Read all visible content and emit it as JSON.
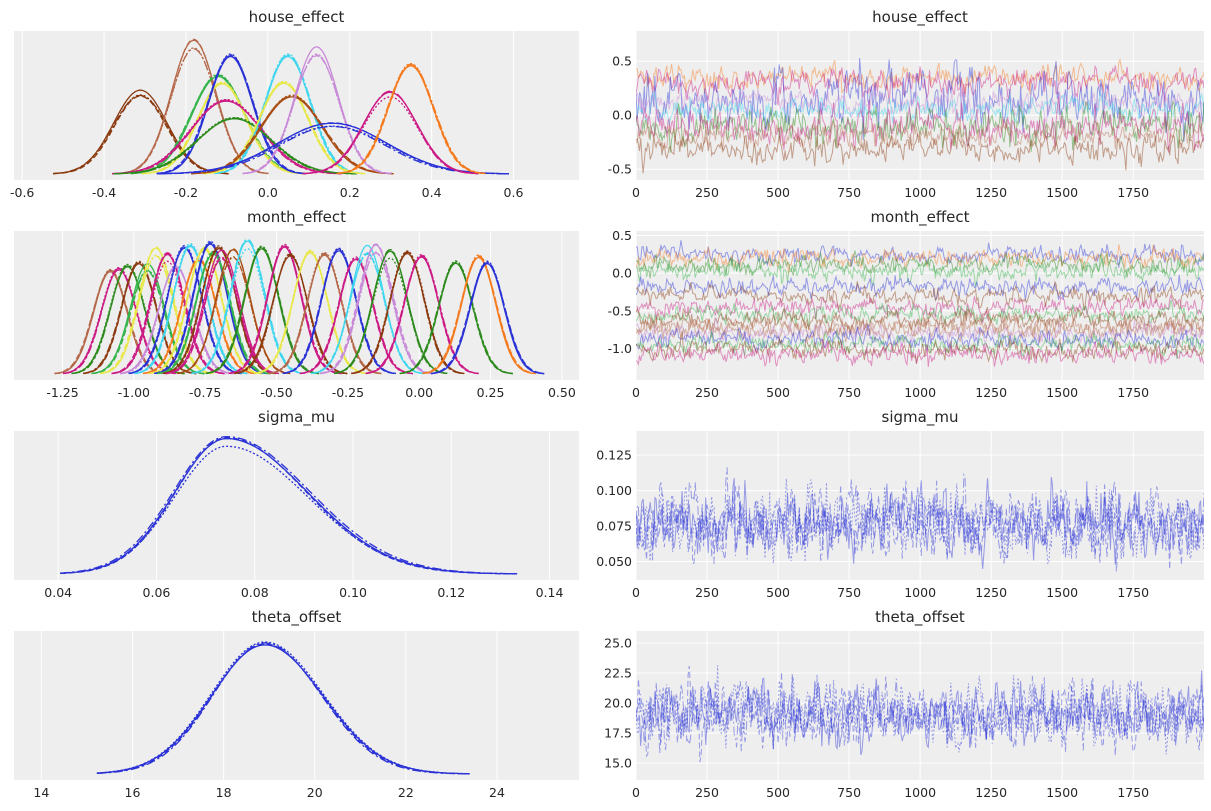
{
  "chart_data": [
    {
      "type": "line",
      "title": "house_effect",
      "plot": "density",
      "xlim": [
        -0.62,
        0.76
      ],
      "x_ticks": [
        "-0.6",
        "-0.4",
        "-0.2",
        "0.0",
        "0.2",
        "0.4",
        "0.6"
      ],
      "x_tick_values": [
        -0.6,
        -0.4,
        -0.2,
        0.0,
        0.2,
        0.4,
        0.6
      ],
      "y_ticks": [],
      "grid": true,
      "series": [
        {
          "mean": -0.31,
          "sd": 0.065,
          "peak": 0.61,
          "color": "#8b3a0f"
        },
        {
          "mean": -0.18,
          "sd": 0.055,
          "peak": 0.98,
          "color": "#b5694a"
        },
        {
          "mean": -0.12,
          "sd": 0.065,
          "peak": 0.72,
          "color": "#34b44a"
        },
        {
          "mean": -0.11,
          "sd": 0.06,
          "peak": 0.67,
          "color": "#e8e84a"
        },
        {
          "mean": -0.09,
          "sd": 0.055,
          "peak": 0.88,
          "color": "#2a32d6"
        },
        {
          "mean": -0.1,
          "sd": 0.085,
          "peak": 0.55,
          "color": "#cc1a85"
        },
        {
          "mean": -0.08,
          "sd": 0.09,
          "peak": 0.42,
          "color": "#2c8a1c"
        },
        {
          "mean": 0.05,
          "sd": 0.055,
          "peak": 0.9,
          "color": "#3fd6ef"
        },
        {
          "mean": 0.04,
          "sd": 0.06,
          "peak": 0.7,
          "color": "#e8e84a"
        },
        {
          "mean": 0.06,
          "sd": 0.075,
          "peak": 0.6,
          "color": "#a84d13"
        },
        {
          "mean": 0.12,
          "sd": 0.055,
          "peak": 0.92,
          "color": "#c88ad8"
        },
        {
          "mean": 0.16,
          "sd": 0.13,
          "peak": 0.37,
          "color": "#2a32d6"
        },
        {
          "mean": 0.3,
          "sd": 0.065,
          "peak": 0.6,
          "color": "#cc1a85"
        },
        {
          "mean": 0.35,
          "sd": 0.055,
          "peak": 0.8,
          "color": "#f57a1e"
        }
      ]
    },
    {
      "type": "line",
      "title": "house_effect",
      "plot": "trace",
      "xlim": [
        0,
        1999
      ],
      "ylim": [
        -0.6,
        0.78
      ],
      "x_ticks": [
        "0",
        "250",
        "500",
        "750",
        "1000",
        "1250",
        "1500",
        "1750"
      ],
      "x_tick_values": [
        0,
        250,
        500,
        750,
        1000,
        1250,
        1500,
        1750
      ],
      "y_ticks": [
        "-0.5",
        "0.0",
        "0.5"
      ],
      "y_tick_values": [
        -0.5,
        0.0,
        0.5
      ],
      "grid": true,
      "series": [
        {
          "mean": 0.35,
          "sd": 0.055,
          "color": "#f57a1e"
        },
        {
          "mean": 0.3,
          "sd": 0.065,
          "color": "#cc1a85"
        },
        {
          "mean": 0.16,
          "sd": 0.13,
          "color": "#2a32d6"
        },
        {
          "mean": 0.12,
          "sd": 0.055,
          "color": "#c88ad8"
        },
        {
          "mean": 0.05,
          "sd": 0.055,
          "color": "#3fd6ef"
        },
        {
          "mean": -0.08,
          "sd": 0.09,
          "color": "#2c8a1c"
        },
        {
          "mean": -0.1,
          "sd": 0.085,
          "color": "#cc1a85"
        },
        {
          "mean": -0.18,
          "sd": 0.055,
          "color": "#b5694a"
        },
        {
          "mean": -0.31,
          "sd": 0.065,
          "color": "#8b3a0f"
        }
      ]
    },
    {
      "type": "line",
      "title": "month_effect",
      "plot": "density",
      "xlim": [
        -1.42,
        0.56
      ],
      "x_ticks": [
        "-1.25",
        "-1.00",
        "-0.75",
        "-0.50",
        "-0.25",
        "0.00",
        "0.25",
        "0.50"
      ],
      "x_tick_values": [
        -1.25,
        -1.0,
        -0.75,
        -0.5,
        -0.25,
        0.0,
        0.25,
        0.5
      ],
      "y_ticks": [],
      "grid": true,
      "series": [
        {
          "mean": -1.08,
          "sd": 0.06,
          "peak": 0.78,
          "color": "#b5694a"
        },
        {
          "mean": -1.05,
          "sd": 0.06,
          "peak": 0.8,
          "color": "#cc1a85"
        },
        {
          "mean": -1.02,
          "sd": 0.06,
          "peak": 0.83,
          "color": "#2c8a1c"
        },
        {
          "mean": -0.98,
          "sd": 0.06,
          "peak": 0.86,
          "color": "#8b3a0f"
        },
        {
          "mean": -0.95,
          "sd": 0.06,
          "peak": 0.8,
          "color": "#34b44a"
        },
        {
          "mean": -0.92,
          "sd": 0.06,
          "peak": 0.92,
          "color": "#e8e84a"
        },
        {
          "mean": -0.88,
          "sd": 0.06,
          "peak": 0.88,
          "color": "#cc1a85"
        },
        {
          "mean": -0.85,
          "sd": 0.06,
          "peak": 0.79,
          "color": "#c88ad8"
        },
        {
          "mean": -0.82,
          "sd": 0.06,
          "peak": 0.94,
          "color": "#2a32d6"
        },
        {
          "mean": -0.8,
          "sd": 0.06,
          "peak": 0.96,
          "color": "#3fd6ef"
        },
        {
          "mean": -0.77,
          "sd": 0.06,
          "peak": 0.86,
          "color": "#f57a1e"
        },
        {
          "mean": -0.75,
          "sd": 0.06,
          "peak": 0.95,
          "color": "#e8e84a"
        },
        {
          "mean": -0.73,
          "sd": 0.06,
          "peak": 1.0,
          "color": "#2a32d6"
        },
        {
          "mean": -0.72,
          "sd": 0.06,
          "peak": 0.93,
          "color": "#34b44a"
        },
        {
          "mean": -0.7,
          "sd": 0.06,
          "peak": 0.98,
          "color": "#8b3a0f"
        },
        {
          "mean": -0.69,
          "sd": 0.06,
          "peak": 0.9,
          "color": "#cc1a85"
        },
        {
          "mean": -0.65,
          "sd": 0.06,
          "peak": 0.91,
          "color": "#a84d13"
        },
        {
          "mean": -0.6,
          "sd": 0.06,
          "peak": 0.98,
          "color": "#3fd6ef"
        },
        {
          "mean": -0.55,
          "sd": 0.06,
          "peak": 0.93,
          "color": "#2c8a1c"
        },
        {
          "mean": -0.47,
          "sd": 0.06,
          "peak": 0.95,
          "color": "#cc1a85"
        },
        {
          "mean": -0.45,
          "sd": 0.06,
          "peak": 0.89,
          "color": "#8b3a0f"
        },
        {
          "mean": -0.38,
          "sd": 0.06,
          "peak": 0.92,
          "color": "#e8e84a"
        },
        {
          "mean": -0.33,
          "sd": 0.06,
          "peak": 0.91,
          "color": "#b5694a"
        },
        {
          "mean": -0.28,
          "sd": 0.06,
          "peak": 0.95,
          "color": "#2a32d6"
        },
        {
          "mean": -0.22,
          "sd": 0.06,
          "peak": 0.89,
          "color": "#cc1a85"
        },
        {
          "mean": -0.18,
          "sd": 0.06,
          "peak": 0.93,
          "color": "#3fd6ef"
        },
        {
          "mean": -0.15,
          "sd": 0.06,
          "peak": 0.94,
          "color": "#c88ad8"
        },
        {
          "mean": -0.1,
          "sd": 0.06,
          "peak": 0.9,
          "color": "#2c8a1c"
        },
        {
          "mean": -0.04,
          "sd": 0.06,
          "peak": 0.89,
          "color": "#8b3a0f"
        },
        {
          "mean": 0.01,
          "sd": 0.06,
          "peak": 0.87,
          "color": "#cc1a85"
        },
        {
          "mean": 0.13,
          "sd": 0.06,
          "peak": 0.83,
          "color": "#2c8a1c"
        },
        {
          "mean": 0.21,
          "sd": 0.06,
          "peak": 0.88,
          "color": "#f57a1e"
        },
        {
          "mean": 0.24,
          "sd": 0.06,
          "peak": 0.84,
          "color": "#2a32d6"
        }
      ]
    },
    {
      "type": "line",
      "title": "month_effect",
      "plot": "trace",
      "xlim": [
        0,
        1999
      ],
      "ylim": [
        -1.42,
        0.56
      ],
      "x_ticks": [
        "0",
        "250",
        "500",
        "750",
        "1000",
        "1250",
        "1500",
        "1750"
      ],
      "x_tick_values": [
        0,
        250,
        500,
        750,
        1000,
        1250,
        1500,
        1750
      ],
      "y_ticks": [
        "-1.0",
        "-0.5",
        "0.0",
        "0.5"
      ],
      "y_tick_values": [
        -1.0,
        -0.5,
        0.0,
        0.5
      ],
      "grid": true,
      "series": [
        {
          "mean": 0.24,
          "sd": 0.06,
          "color": "#2a32d6"
        },
        {
          "mean": 0.2,
          "sd": 0.06,
          "color": "#f57a1e"
        },
        {
          "mean": 0.12,
          "sd": 0.06,
          "color": "#2c8a1c"
        },
        {
          "mean": 0.01,
          "sd": 0.06,
          "color": "#34b44a"
        },
        {
          "mean": -0.18,
          "sd": 0.06,
          "color": "#2a32d6"
        },
        {
          "mean": -0.3,
          "sd": 0.06,
          "color": "#8b3a0f"
        },
        {
          "mean": -0.45,
          "sd": 0.06,
          "color": "#cc1a85"
        },
        {
          "mean": -0.55,
          "sd": 0.06,
          "color": "#34b44a"
        },
        {
          "mean": -0.62,
          "sd": 0.06,
          "color": "#8b3a0f"
        },
        {
          "mean": -0.7,
          "sd": 0.06,
          "color": "#b5694a"
        },
        {
          "mean": -0.75,
          "sd": 0.06,
          "color": "#b5694a"
        },
        {
          "mean": -0.8,
          "sd": 0.06,
          "color": "#c88ad8"
        },
        {
          "mean": -0.88,
          "sd": 0.06,
          "color": "#2a32d6"
        },
        {
          "mean": -0.95,
          "sd": 0.06,
          "color": "#34b44a"
        },
        {
          "mean": -1.02,
          "sd": 0.06,
          "color": "#8b3a0f"
        },
        {
          "mean": -1.08,
          "sd": 0.06,
          "color": "#cc1a85"
        }
      ]
    },
    {
      "type": "line",
      "title": "sigma_mu",
      "plot": "density",
      "xlim": [
        0.031,
        0.146
      ],
      "x_ticks": [
        "0.04",
        "0.06",
        "0.08",
        "0.10",
        "0.12",
        "0.14"
      ],
      "x_tick_values": [
        0.04,
        0.06,
        0.08,
        0.1,
        0.12,
        0.14
      ],
      "y_ticks": [],
      "grid": true,
      "series": [
        {
          "mode": 0.074,
          "sd_left": 0.0105,
          "sd_right": 0.0165,
          "peak": 1.0,
          "color": "#2a32d6"
        }
      ]
    },
    {
      "type": "line",
      "title": "sigma_mu",
      "plot": "trace",
      "xlim": [
        0,
        1999
      ],
      "ylim": [
        0.037,
        0.142
      ],
      "x_ticks": [
        "0",
        "250",
        "500",
        "750",
        "1000",
        "1250",
        "1500",
        "1750"
      ],
      "x_tick_values": [
        0,
        250,
        500,
        750,
        1000,
        1250,
        1500,
        1750
      ],
      "y_ticks": [
        "0.050",
        "0.075",
        "0.100",
        "0.125"
      ],
      "y_tick_values": [
        0.05,
        0.075,
        0.1,
        0.125
      ],
      "grid": true,
      "series": [
        {
          "mean": 0.077,
          "sd": 0.012,
          "color": "#2a32d6"
        }
      ]
    },
    {
      "type": "line",
      "title": "theta_offset",
      "plot": "density",
      "xlim": [
        13.4,
        25.8
      ],
      "x_ticks": [
        "14",
        "16",
        "18",
        "20",
        "22",
        "24"
      ],
      "x_tick_values": [
        14,
        16,
        18,
        20,
        22,
        24
      ],
      "y_ticks": [],
      "grid": true,
      "series": [
        {
          "mode": 18.9,
          "sd_left": 1.15,
          "sd_right": 1.25,
          "peak": 1.0,
          "color": "#2a32d6"
        }
      ]
    },
    {
      "type": "line",
      "title": "theta_offset",
      "plot": "trace",
      "xlim": [
        0,
        1999
      ],
      "ylim": [
        13.6,
        26.0
      ],
      "x_ticks": [
        "0",
        "250",
        "500",
        "750",
        "1000",
        "1250",
        "1500",
        "1750"
      ],
      "x_tick_values": [
        0,
        250,
        500,
        750,
        1000,
        1250,
        1500,
        1750
      ],
      "y_ticks": [
        "15.0",
        "17.5",
        "20.0",
        "22.5",
        "25.0"
      ],
      "y_tick_values": [
        15.0,
        17.5,
        20.0,
        22.5,
        25.0
      ],
      "grid": true,
      "series": [
        {
          "mean": 19.0,
          "sd": 1.25,
          "color": "#2a32d6"
        }
      ]
    }
  ]
}
